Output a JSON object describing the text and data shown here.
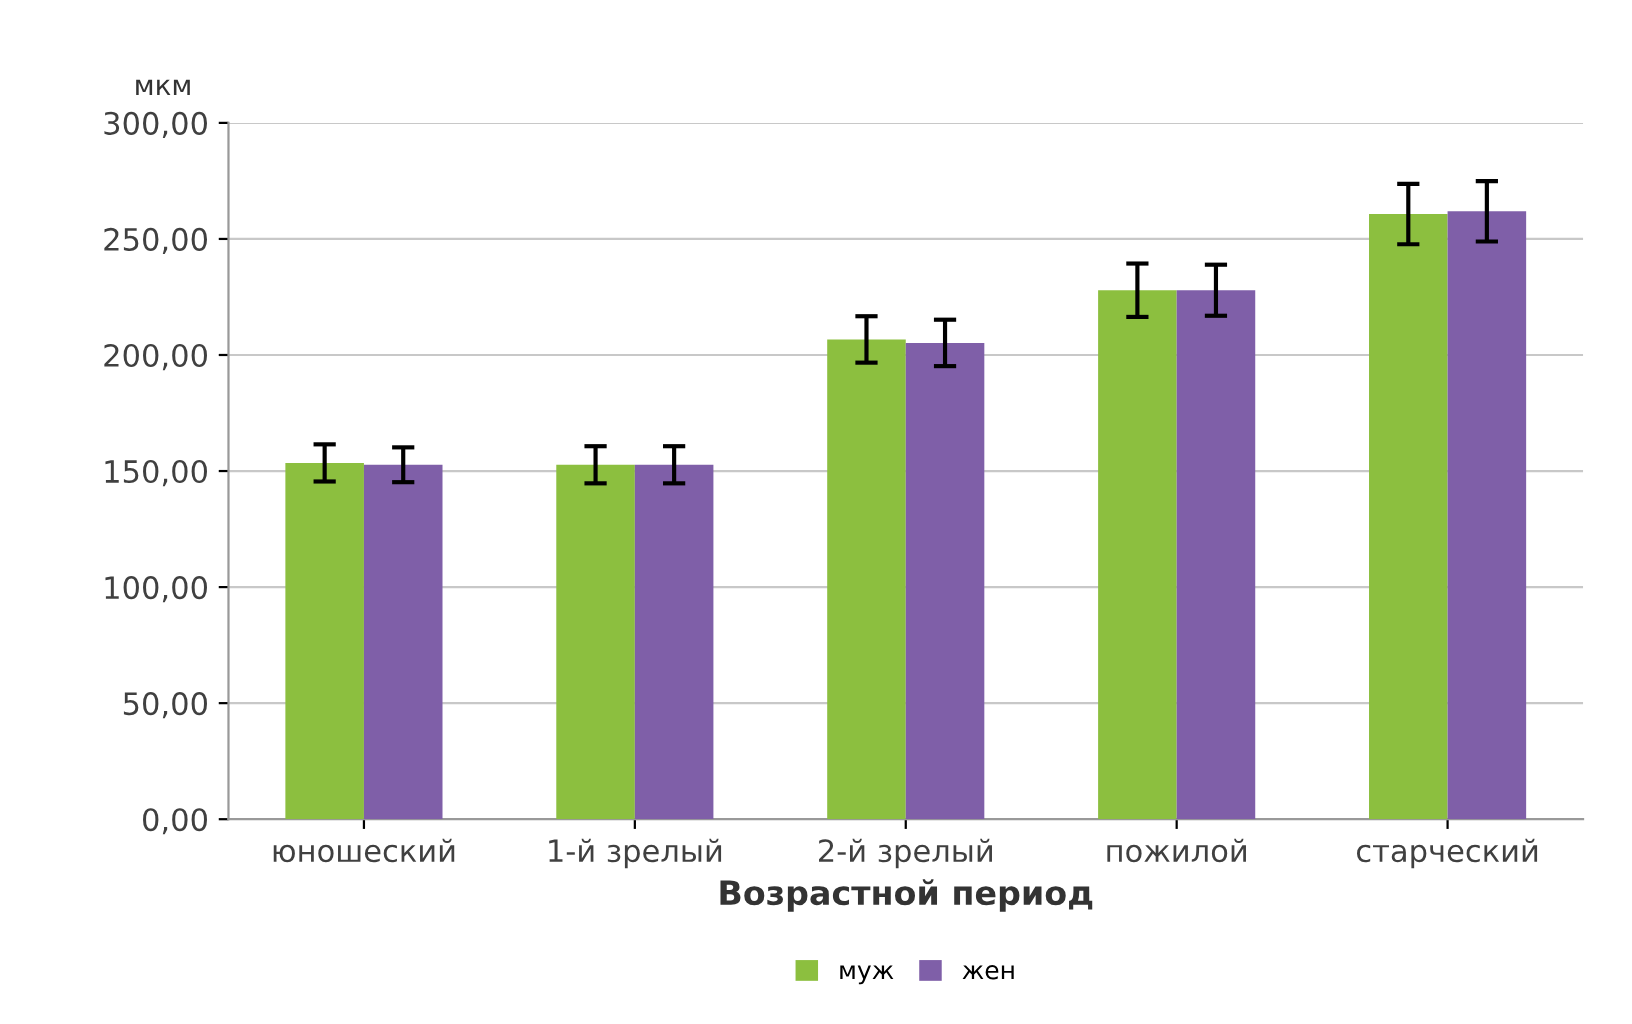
{
  "chart_data": {
    "type": "bar",
    "xlabel": "Возрастной период",
    "ylabel": "мкм",
    "categories": [
      "юношеский",
      "1-й зрелый",
      "2-й зрелый",
      "пожилой",
      "старческий"
    ],
    "series": [
      {
        "name": "муж",
        "color": "#8cbf3f",
        "values": [
          153.5,
          152.7,
          206.7,
          227.9,
          260.7
        ],
        "errors": [
          8,
          8,
          10,
          11.5,
          13
        ]
      },
      {
        "name": "жен",
        "color": "#7f5fa8",
        "values": [
          152.7,
          152.7,
          205.2,
          227.9,
          261.9
        ],
        "errors": [
          7.5,
          8,
          10,
          11,
          13
        ]
      }
    ],
    "ylim": [
      0,
      300
    ],
    "yticks": [
      {
        "value": 0,
        "label": "0,00"
      },
      {
        "value": 50,
        "label": "50,00"
      },
      {
        "value": 100,
        "label": "100,00"
      },
      {
        "value": 150,
        "label": "150,00"
      },
      {
        "value": 200,
        "label": "200,00"
      },
      {
        "value": 250,
        "label": "250,00"
      },
      {
        "value": 300,
        "label": "300,00"
      }
    ],
    "grid": "y",
    "legend": "bottom"
  }
}
